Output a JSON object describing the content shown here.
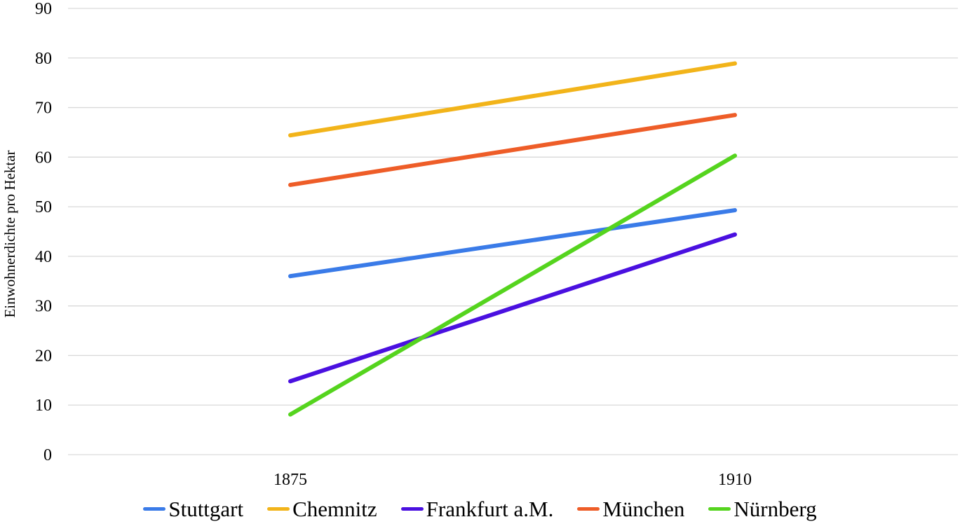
{
  "chart_data": {
    "type": "line",
    "title": "",
    "xlabel": "",
    "ylabel": "Einwohnerdichte pro Hektar",
    "categories": [
      "1875",
      "1910"
    ],
    "ylim": [
      0,
      90
    ],
    "yticks": [
      0,
      10,
      20,
      30,
      40,
      50,
      60,
      70,
      80,
      90
    ],
    "grid": true,
    "legend_position": "bottom",
    "series": [
      {
        "name": "Stuttgart",
        "values": [
          36,
          49.3
        ],
        "color": "#3a7be8"
      },
      {
        "name": "Chemnitz",
        "values": [
          64.4,
          78.9
        ],
        "color": "#f2b41a"
      },
      {
        "name": "Frankfurt a.M.",
        "values": [
          14.8,
          44.4
        ],
        "color": "#4a10e0"
      },
      {
        "name": "München",
        "values": [
          54.4,
          68.5
        ],
        "color": "#ee5d28"
      },
      {
        "name": "Nürnberg",
        "values": [
          8.1,
          60.3
        ],
        "color": "#55d41e"
      }
    ]
  }
}
